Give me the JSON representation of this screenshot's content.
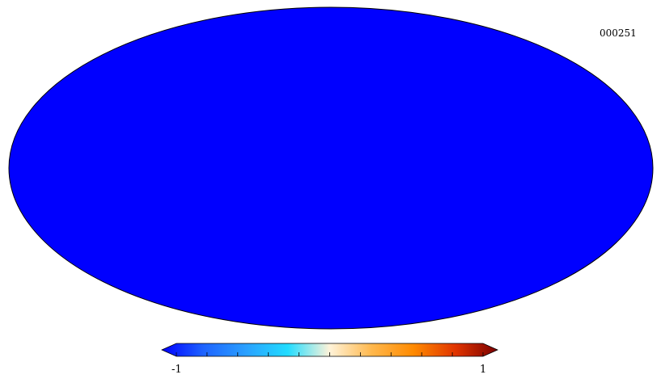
{
  "map": {
    "id_label": "000251",
    "projection": "mollweide",
    "style": "random-field",
    "background": "#ffffff"
  },
  "colorbar": {
    "min_label": "-1",
    "max_label": "1",
    "min": -1,
    "max": 1,
    "colors": [
      "#0000ff",
      "#1e64ff",
      "#2aa0ff",
      "#22dcff",
      "#fff3d9",
      "#ffb84d",
      "#ff8a00",
      "#e03400",
      "#7a0000"
    ]
  }
}
